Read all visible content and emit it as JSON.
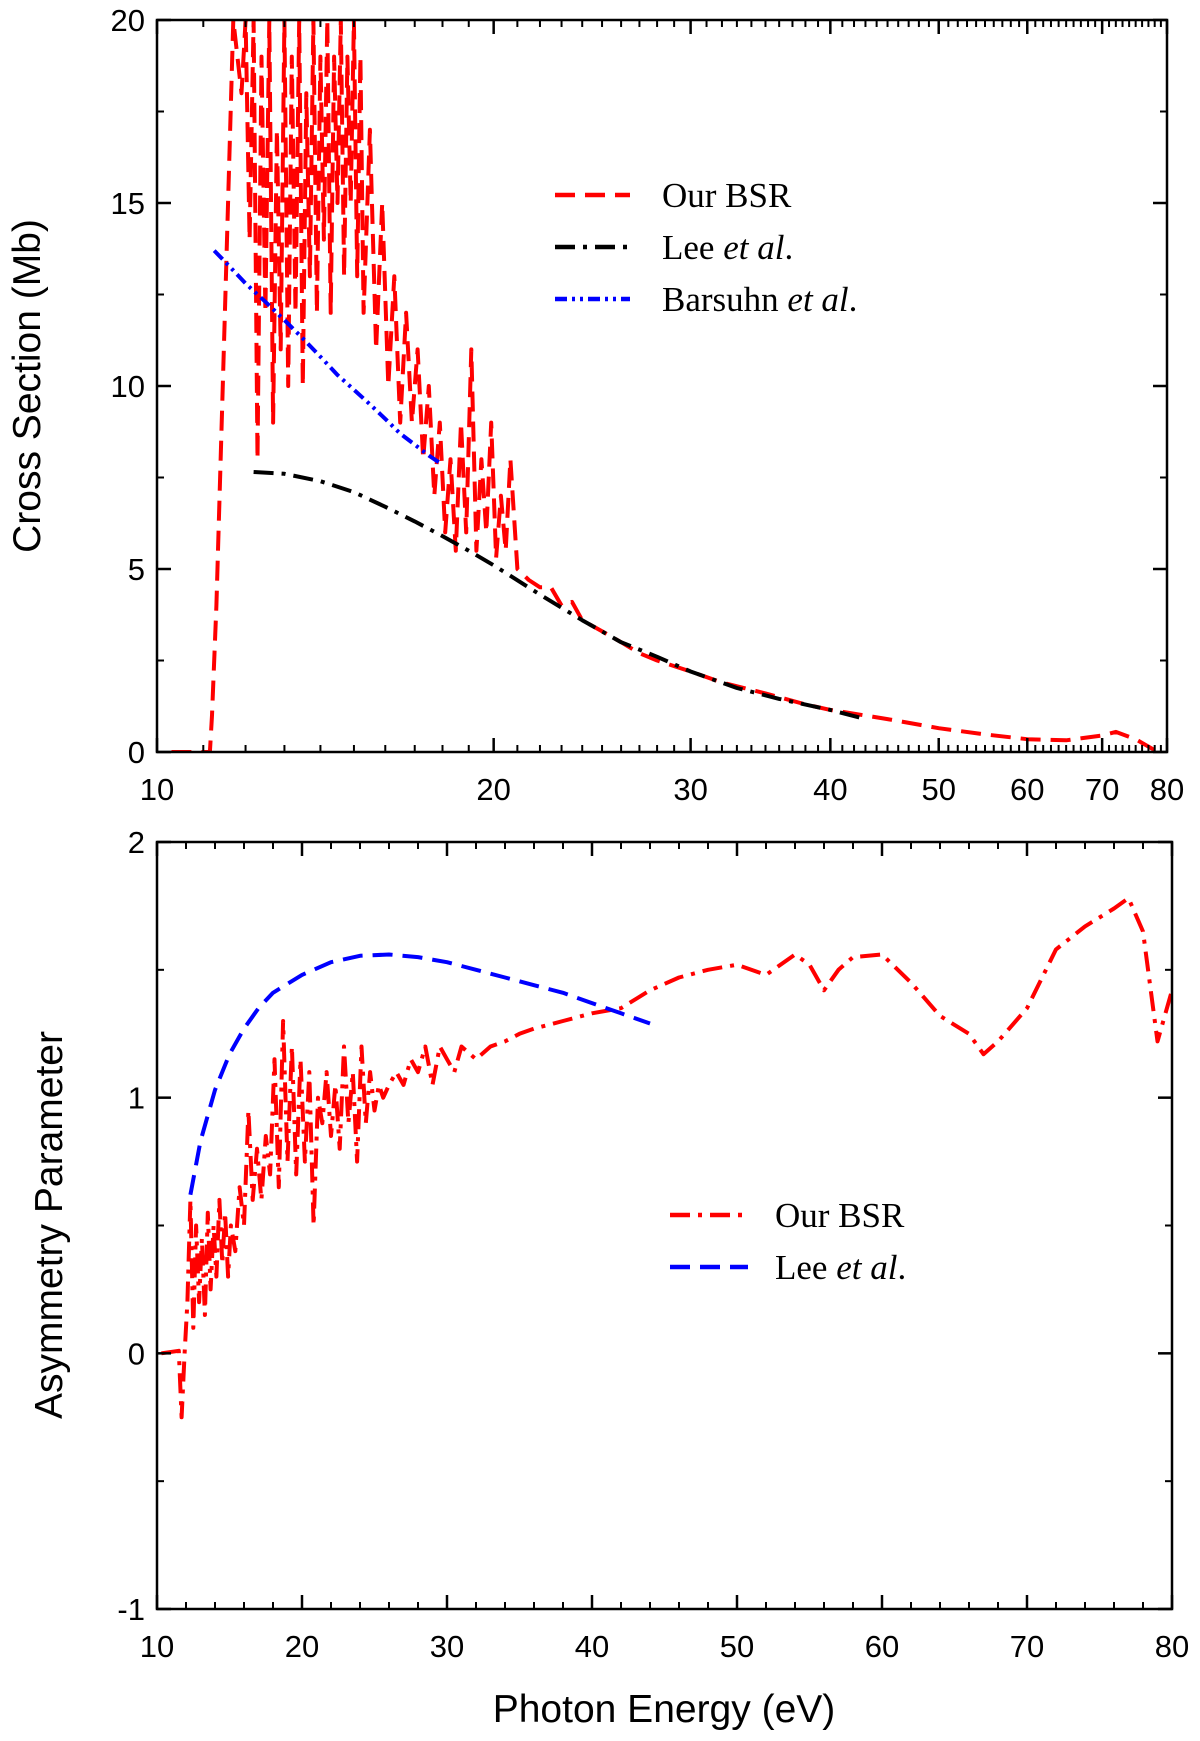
{
  "chart_data": [
    {
      "type": "line",
      "xscale": "log",
      "xlabel": "",
      "ylabel": "Cross Section (Mb)",
      "xlim": [
        10,
        80
      ],
      "ylim": [
        0,
        20
      ],
      "xticks": [
        10,
        20,
        30,
        40,
        50,
        60,
        70,
        80
      ],
      "xtick_labels": [
        "10",
        "20",
        "30",
        "40",
        "50",
        "60",
        "70",
        "80"
      ],
      "yticks": [
        0,
        5,
        10,
        15,
        20
      ],
      "ytick_labels": [
        "0",
        "5",
        "10",
        "15",
        "20"
      ],
      "legend_position": "upper-middle",
      "series": [
        {
          "name": "Our BSR",
          "name_parts": [
            {
              "text": "Our BSR",
              "italic": false
            }
          ],
          "style": "dashed",
          "color": "#ff0000",
          "x": [
            10.3,
            11.1,
            11.15,
            11.2,
            11.3,
            11.5,
            11.7,
            11.9,
            12.0,
            12.1,
            12.2,
            12.3,
            12.4,
            12.5,
            12.6,
            12.7,
            12.8,
            12.9,
            13.0,
            13.1,
            13.2,
            13.3,
            13.4,
            13.5,
            13.6,
            13.7,
            13.8,
            13.9,
            14.0,
            14.1,
            14.2,
            14.3,
            14.4,
            14.5,
            14.6,
            14.7,
            14.8,
            14.9,
            15.0,
            15.1,
            15.2,
            15.3,
            15.5,
            15.7,
            15.9,
            16.1,
            16.3,
            16.5,
            16.7,
            16.9,
            17.1,
            17.3,
            17.5,
            17.7,
            17.9,
            18.1,
            18.3,
            18.5,
            18.7,
            18.9,
            19.1,
            19.3,
            19.5,
            19.7,
            19.9,
            20.1,
            20.3,
            20.5,
            20.7,
            21.0,
            21.5,
            22.0,
            22.5,
            23.0,
            23.5,
            24.0,
            25.0,
            26.0,
            27.0,
            28.0,
            30.0,
            32.0,
            35.0,
            38.0,
            40.0,
            45.0,
            50.0,
            55.0,
            60.0,
            65.0,
            70.0,
            72.0,
            75.0,
            78.0
          ],
          "y": [
            0,
            0,
            0,
            1,
            4,
            12,
            20,
            18,
            20,
            14,
            20,
            8,
            19,
            12,
            20,
            9,
            17,
            11,
            20,
            10,
            19,
            12,
            20,
            10,
            18,
            13,
            20,
            12,
            19,
            14,
            20,
            12,
            19,
            15,
            20,
            13,
            19,
            15,
            20,
            13,
            19,
            12,
            17,
            11,
            15,
            10,
            13,
            9,
            12,
            9,
            11,
            8,
            10,
            7,
            9,
            6,
            8,
            5.5,
            9,
            6,
            11,
            5.5,
            8,
            6,
            9,
            5.3,
            7,
            5.5,
            8,
            5,
            4.7,
            4.5,
            4.5,
            4.0,
            4.1,
            3.6,
            3.3,
            3.0,
            2.7,
            2.5,
            2.2,
            1.9,
            1.6,
            1.3,
            1.15,
            0.9,
            0.65,
            0.48,
            0.35,
            0.32,
            0.45,
            0.55,
            0.35,
            0.05
          ]
        },
        {
          "name": "Lee et al.",
          "name_parts": [
            {
              "text": "Lee ",
              "italic": false
            },
            {
              "text": "et al",
              "italic": true
            },
            {
              "text": ".",
              "italic": false
            }
          ],
          "style": "dash-dot",
          "color": "#000000",
          "x": [
            12.2,
            13.0,
            14.0,
            15.0,
            16.0,
            17.0,
            18.0,
            19.0,
            20.0,
            22.0,
            24.0,
            26.0,
            28.0,
            30.0,
            33.0,
            36.0,
            40.0,
            43.0
          ],
          "y": [
            7.65,
            7.6,
            7.4,
            7.1,
            6.7,
            6.3,
            5.9,
            5.5,
            5.1,
            4.3,
            3.6,
            3.0,
            2.6,
            2.2,
            1.75,
            1.45,
            1.15,
            0.9
          ]
        },
        {
          "name": "Barsuhn et al.",
          "name_parts": [
            {
              "text": "Barsuhn ",
              "italic": false
            },
            {
              "text": "et al",
              "italic": true
            },
            {
              "text": ".",
              "italic": false
            }
          ],
          "style": "dash-dot-dot",
          "color": "#0000ff",
          "x": [
            11.25,
            11.5,
            12.0,
            12.5,
            13.0,
            13.5,
            14.0,
            14.5,
            15.0,
            15.5,
            16.0,
            16.5,
            17.0,
            17.5,
            18.0
          ],
          "y": [
            13.7,
            13.4,
            12.8,
            12.3,
            11.8,
            11.3,
            10.8,
            10.3,
            9.9,
            9.5,
            9.1,
            8.7,
            8.4,
            8.1,
            7.85
          ]
        }
      ]
    },
    {
      "type": "line",
      "xscale": "linear",
      "xlabel": "Photon Energy (eV)",
      "ylabel": "Asymmetry Parameter",
      "xlim": [
        10,
        80
      ],
      "ylim": [
        -1,
        2
      ],
      "xticks": [
        10,
        20,
        30,
        40,
        50,
        60,
        70,
        80
      ],
      "xtick_labels": [
        "10",
        "20",
        "30",
        "40",
        "50",
        "60",
        "70",
        "80"
      ],
      "yticks": [
        -1,
        0,
        1,
        2
      ],
      "ytick_labels": [
        "-1",
        "0",
        "1",
        "2"
      ],
      "legend_position": "center-right",
      "series": [
        {
          "name": "Our BSR",
          "name_parts": [
            {
              "text": "Our BSR",
              "italic": false
            }
          ],
          "style": "dash-dot",
          "color": "#ff0000",
          "x": [
            10.3,
            11.5,
            11.7,
            11.9,
            12.1,
            12.3,
            12.5,
            12.7,
            12.9,
            13.1,
            13.3,
            13.5,
            13.7,
            13.9,
            14.1,
            14.3,
            14.5,
            14.7,
            14.9,
            15.1,
            15.4,
            15.7,
            16.0,
            16.3,
            16.6,
            16.9,
            17.2,
            17.5,
            17.8,
            18.1,
            18.4,
            18.7,
            19.0,
            19.3,
            19.6,
            19.9,
            20.2,
            20.5,
            20.8,
            21.1,
            21.4,
            21.7,
            22.0,
            22.3,
            22.6,
            22.9,
            23.2,
            23.5,
            23.8,
            24.1,
            24.4,
            24.7,
            25.0,
            25.3,
            25.6,
            26.0,
            26.5,
            27.0,
            27.5,
            28.0,
            28.5,
            29.0,
            29.5,
            30.0,
            30.5,
            31.0,
            32.0,
            33.0,
            34.0,
            35.0,
            36.0,
            38.0,
            40.0,
            42.0,
            44.0,
            46.0,
            48.0,
            50.0,
            52.0,
            54.0,
            55.0,
            56.0,
            57.0,
            58.0,
            60.0,
            62.0,
            64.0,
            66.0,
            67.0,
            68.0,
            70.0,
            72.0,
            74.0,
            76.0,
            77.0,
            78.0,
            79.0,
            80.0
          ],
          "y": [
            0,
            0.01,
            -0.25,
            0.0,
            0.2,
            0.6,
            0.1,
            0.5,
            0.2,
            0.45,
            0.15,
            0.55,
            0.25,
            0.5,
            0.3,
            0.6,
            0.35,
            0.55,
            0.3,
            0.5,
            0.4,
            0.65,
            0.5,
            0.95,
            0.6,
            0.8,
            0.6,
            0.85,
            0.7,
            1.15,
            0.65,
            1.3,
            0.75,
            1.2,
            0.7,
            1.15,
            0.75,
            1.1,
            0.5,
            1.0,
            0.9,
            1.1,
            0.85,
            1.05,
            0.8,
            1.2,
            0.9,
            1.1,
            0.75,
            1.2,
            0.9,
            1.1,
            0.95,
            1.05,
            1.0,
            1.05,
            1.1,
            1.05,
            1.15,
            1.1,
            1.2,
            1.05,
            1.2,
            1.15,
            1.1,
            1.2,
            1.15,
            1.2,
            1.22,
            1.25,
            1.27,
            1.3,
            1.33,
            1.35,
            1.42,
            1.47,
            1.5,
            1.52,
            1.48,
            1.56,
            1.52,
            1.42,
            1.5,
            1.55,
            1.56,
            1.45,
            1.32,
            1.25,
            1.17,
            1.22,
            1.35,
            1.58,
            1.67,
            1.74,
            1.78,
            1.65,
            1.22,
            1.42
          ]
        },
        {
          "name": "Lee et al.",
          "name_parts": [
            {
              "text": "Lee ",
              "italic": false
            },
            {
              "text": "et al",
              "italic": true
            },
            {
              "text": ".",
              "italic": false
            }
          ],
          "style": "dashed",
          "color": "#0000ff",
          "x": [
            12.3,
            13.0,
            14.0,
            15.0,
            16.0,
            17.0,
            18.0,
            20.0,
            22.0,
            24.0,
            26.0,
            28.0,
            30.0,
            32.0,
            34.0,
            36.0,
            38.0,
            40.0,
            42.0,
            44.0
          ],
          "y": [
            0.62,
            0.83,
            1.03,
            1.17,
            1.27,
            1.35,
            1.41,
            1.48,
            1.53,
            1.555,
            1.56,
            1.55,
            1.53,
            1.5,
            1.47,
            1.44,
            1.41,
            1.37,
            1.33,
            1.29
          ]
        }
      ]
    }
  ]
}
